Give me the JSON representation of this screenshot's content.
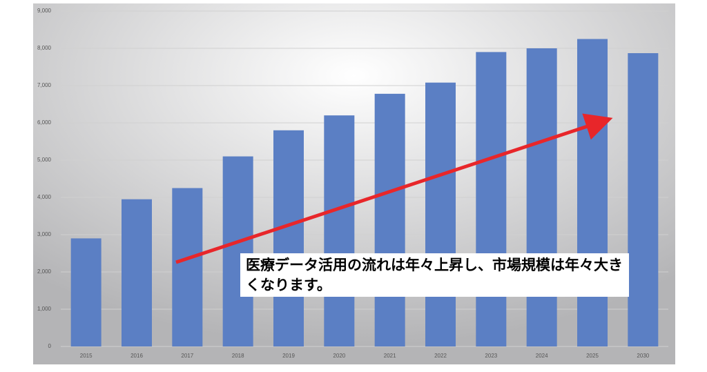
{
  "chart_data": {
    "type": "bar",
    "categories": [
      "2015",
      "2016",
      "2017",
      "2018",
      "2019",
      "2020",
      "2021",
      "2022",
      "2023",
      "2024",
      "2025",
      "2030"
    ],
    "values": [
      2900,
      3950,
      4250,
      5100,
      5800,
      6200,
      6780,
      7080,
      7900,
      8000,
      8250,
      7870
    ],
    "color": "#5b7fc4",
    "ylim": [
      0,
      9000
    ],
    "yticks": [
      0,
      {
        "value": 1000,
        "label": "1,000"
      },
      {
        "value": 2000,
        "label": "2,000"
      },
      {
        "value": 3000,
        "label": "3,000"
      },
      {
        "value": 4000,
        "label": "4,000"
      },
      {
        "value": 5000,
        "label": "5,000"
      },
      {
        "value": 6000,
        "label": "6,000"
      },
      {
        "value": 7000,
        "label": "7,000"
      },
      {
        "value": 8000,
        "label": "8,000"
      },
      {
        "value": 9000,
        "label": "9,000"
      }
    ],
    "grid": true,
    "annotation": "医療データ活用の流れは年々上昇し、市場規模は年々大きくなります。"
  }
}
